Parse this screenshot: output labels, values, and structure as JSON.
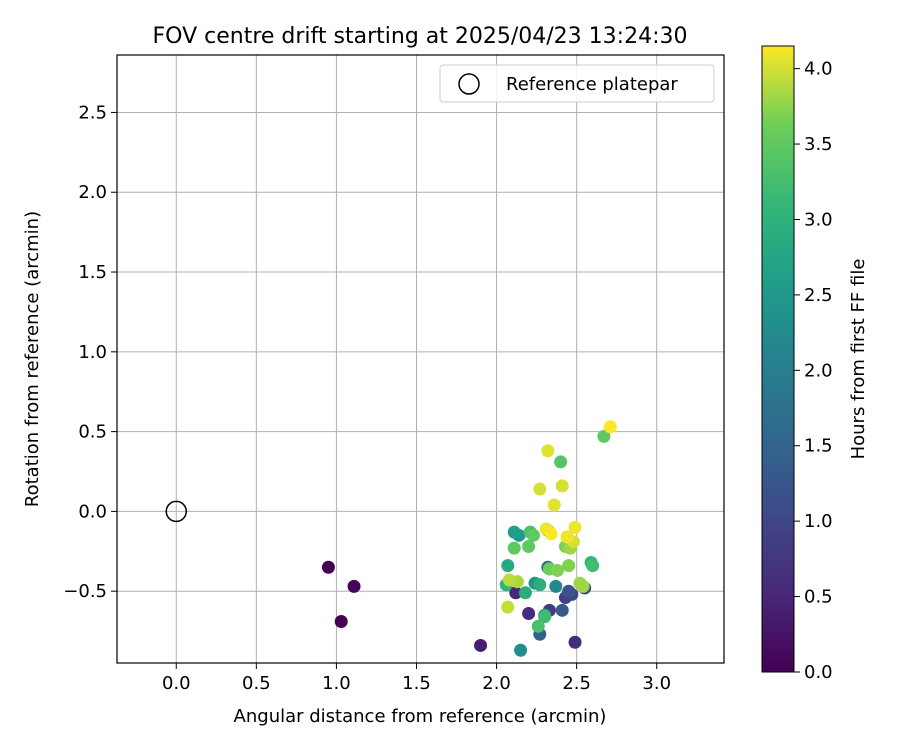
{
  "chart_data": {
    "type": "scatter",
    "title": "FOV centre drift starting at 2025/04/23 13:24:30",
    "xlabel": "Angular distance from reference (arcmin)",
    "ylabel": "Rotation from reference (arcmin)",
    "xlim": [
      -0.37,
      3.42
    ],
    "ylim": [
      -0.95,
      2.86
    ],
    "xticks": [
      0.0,
      0.5,
      1.0,
      1.5,
      2.0,
      2.5,
      3.0
    ],
    "xtick_labels": [
      "0.0",
      "0.5",
      "1.0",
      "1.5",
      "2.0",
      "2.5",
      "3.0"
    ],
    "yticks": [
      -0.5,
      0.0,
      0.5,
      1.0,
      1.5,
      2.0,
      2.5
    ],
    "ytick_labels": [
      "−0.5",
      "0.0",
      "0.5",
      "1.0",
      "1.5",
      "2.0",
      "2.5"
    ],
    "grid": true,
    "legend": {
      "placement": "top-right",
      "entries": [
        "Reference platepar"
      ]
    },
    "reference_point": {
      "x": 0.0,
      "y": 0.0,
      "label": "Reference platepar"
    },
    "colorbar": {
      "label": "Hours from first FF file",
      "colormap": "viridis",
      "range": [
        0.0,
        4.15
      ],
      "ticks": [
        0.0,
        0.5,
        1.0,
        1.5,
        2.0,
        2.5,
        3.0,
        3.5,
        4.0
      ],
      "tick_labels": [
        "0.0",
        "0.5",
        "1.0",
        "1.5",
        "2.0",
        "2.5",
        "3.0",
        "3.5",
        "4.0"
      ]
    },
    "points": [
      {
        "x": 0.95,
        "y": -0.35,
        "c": 0.0
      },
      {
        "x": 1.03,
        "y": -0.69,
        "c": 0.02
      },
      {
        "x": 1.11,
        "y": -0.47,
        "c": 0.05
      },
      {
        "x": 1.9,
        "y": -0.84,
        "c": 0.4
      },
      {
        "x": 2.12,
        "y": -0.51,
        "c": 0.5
      },
      {
        "x": 2.2,
        "y": -0.64,
        "c": 0.6
      },
      {
        "x": 2.49,
        "y": -0.82,
        "c": 0.6
      },
      {
        "x": 2.33,
        "y": -0.62,
        "c": 0.8
      },
      {
        "x": 2.43,
        "y": -0.54,
        "c": 0.9
      },
      {
        "x": 2.47,
        "y": -0.52,
        "c": 1.0
      },
      {
        "x": 2.55,
        "y": -0.48,
        "c": 1.0
      },
      {
        "x": 2.45,
        "y": -0.5,
        "c": 1.2
      },
      {
        "x": 2.41,
        "y": -0.62,
        "c": 1.3
      },
      {
        "x": 2.27,
        "y": -0.77,
        "c": 1.4
      },
      {
        "x": 2.32,
        "y": -0.35,
        "c": 1.6
      },
      {
        "x": 2.15,
        "y": -0.87,
        "c": 2.3
      },
      {
        "x": 2.37,
        "y": -0.47,
        "c": 2.2
      },
      {
        "x": 2.24,
        "y": -0.45,
        "c": 2.4
      },
      {
        "x": 2.14,
        "y": -0.15,
        "c": 2.5
      },
      {
        "x": 2.11,
        "y": -0.13,
        "c": 2.6
      },
      {
        "x": 2.3,
        "y": -0.65,
        "c": 2.8
      },
      {
        "x": 2.07,
        "y": -0.34,
        "c": 2.8
      },
      {
        "x": 2.18,
        "y": -0.51,
        "c": 2.9
      },
      {
        "x": 2.27,
        "y": -0.46,
        "c": 2.9
      },
      {
        "x": 2.06,
        "y": -0.46,
        "c": 3.0
      },
      {
        "x": 2.33,
        "y": -0.36,
        "c": 3.1
      },
      {
        "x": 2.59,
        "y": -0.32,
        "c": 3.1
      },
      {
        "x": 2.6,
        "y": -0.34,
        "c": 3.2
      },
      {
        "x": 2.3,
        "y": -0.66,
        "c": 3.2
      },
      {
        "x": 2.26,
        "y": -0.72,
        "c": 3.3
      },
      {
        "x": 2.21,
        "y": -0.13,
        "c": 3.3
      },
      {
        "x": 2.32,
        "y": -0.12,
        "c": 3.3
      },
      {
        "x": 2.4,
        "y": 0.31,
        "c": 3.4
      },
      {
        "x": 2.67,
        "y": 0.47,
        "c": 3.5
      },
      {
        "x": 2.11,
        "y": -0.23,
        "c": 3.5
      },
      {
        "x": 2.2,
        "y": -0.22,
        "c": 3.5
      },
      {
        "x": 2.23,
        "y": -0.15,
        "c": 3.5
      },
      {
        "x": 2.33,
        "y": -0.36,
        "c": 3.6
      },
      {
        "x": 2.38,
        "y": -0.37,
        "c": 3.7
      },
      {
        "x": 2.43,
        "y": -0.22,
        "c": 3.7
      },
      {
        "x": 2.45,
        "y": -0.34,
        "c": 3.7
      },
      {
        "x": 2.52,
        "y": -0.45,
        "c": 3.8
      },
      {
        "x": 2.54,
        "y": -0.47,
        "c": 3.8
      },
      {
        "x": 2.46,
        "y": -0.23,
        "c": 3.8
      },
      {
        "x": 2.13,
        "y": -0.44,
        "c": 3.85
      },
      {
        "x": 2.08,
        "y": -0.43,
        "c": 3.9
      },
      {
        "x": 2.07,
        "y": -0.6,
        "c": 3.95
      },
      {
        "x": 2.48,
        "y": -0.19,
        "c": 4.0
      },
      {
        "x": 2.27,
        "y": 0.14,
        "c": 4.0
      },
      {
        "x": 2.41,
        "y": 0.16,
        "c": 4.0
      },
      {
        "x": 2.36,
        "y": 0.04,
        "c": 4.05
      },
      {
        "x": 2.32,
        "y": 0.38,
        "c": 4.05
      },
      {
        "x": 2.49,
        "y": -0.1,
        "c": 4.1
      },
      {
        "x": 2.44,
        "y": -0.16,
        "c": 4.1
      },
      {
        "x": 2.31,
        "y": -0.11,
        "c": 4.1
      },
      {
        "x": 2.34,
        "y": -0.14,
        "c": 4.15
      },
      {
        "x": 2.71,
        "y": 0.53,
        "c": 4.15
      }
    ]
  }
}
